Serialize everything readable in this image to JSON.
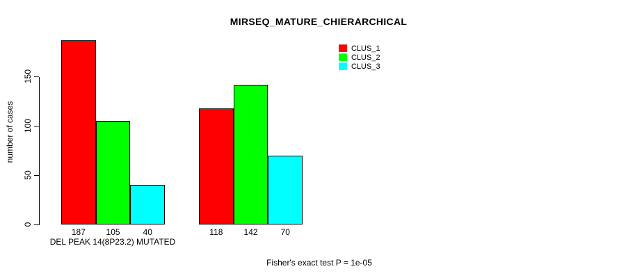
{
  "chart_data": {
    "type": "bar",
    "title": "MIRSEQ_MATURE_CHIERARCHICAL",
    "ylabel": "number of cases",
    "xlabel": "",
    "categories": [
      "DEL PEAK 14(8P23.2) MUTATED",
      ""
    ],
    "series": [
      {
        "name": "CLUS_1",
        "color": "#ff0000",
        "values": [
          187,
          118
        ]
      },
      {
        "name": "CLUS_2",
        "color": "#00ff00",
        "values": [
          105,
          142
        ]
      },
      {
        "name": "CLUS_3",
        "color": "#00ffff",
        "values": [
          40,
          70
        ]
      }
    ],
    "value_labels": [
      [
        187,
        105,
        40
      ],
      [
        118,
        142,
        70
      ]
    ],
    "yticks": [
      0,
      50,
      100,
      150
    ],
    "ylim": [
      0,
      187
    ],
    "grid": false,
    "legend": {
      "position": "top-right",
      "entries": [
        "CLUS_1",
        "CLUS_2",
        "CLUS_3"
      ]
    },
    "annotation": "Fisher's exact test P = 1e-05",
    "colors": {
      "axis": "#000000",
      "text": "#000000",
      "background": "#ffffff"
    }
  }
}
